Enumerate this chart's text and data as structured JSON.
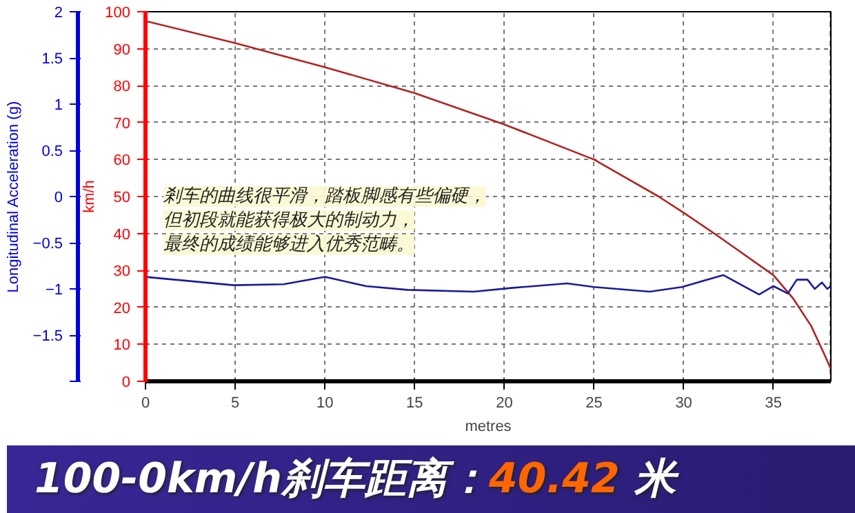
{
  "chart_data": {
    "type": "line",
    "title": "100-0km/h刹车距离：40.42 米",
    "xlabel": "metres",
    "ylabel": "Longitudinal Acceleration (g)",
    "y2label": "km/h",
    "xlim": [
      0,
      38.2
    ],
    "xticks": [
      0,
      5,
      10,
      15,
      20,
      25,
      30,
      35
    ],
    "ylim": [
      -2,
      2
    ],
    "yticks": [
      {
        "value": -2,
        "label": null
      },
      -1.5,
      -1,
      -0.5,
      0,
      0.5,
      1,
      1.5,
      2
    ],
    "y2lim": [
      0,
      100
    ],
    "y2ticks": [
      0,
      10,
      20,
      30,
      40,
      50,
      60,
      70,
      80,
      90,
      100
    ],
    "grid": true,
    "marker": "none",
    "line_style": "solid",
    "annotations": [
      "剎车的曲线很平滑，踏板脚感有些偏硬，",
      "但初段就能获得极大的制动力，",
      "最终的成绩能够进入优秀范畴。"
    ],
    "ref_lines": [
      {
        "axis": "x",
        "value": 38.2,
        "label": null,
        "color": "#000000",
        "line_style": "dashed"
      }
    ],
    "series": [
      {
        "color": "#b22222",
        "axis": "y2",
        "x": [
          0,
          5,
          10,
          15,
          20,
          25,
          28.6,
          30,
          32,
          35,
          36.1,
          37.1,
          37.8,
          38.2
        ],
        "values": [
          97.5,
          91.5,
          85,
          78,
          69.5,
          60,
          50,
          45.6,
          39,
          28.7,
          22.4,
          15,
          7.7,
          3.3
        ]
      },
      {
        "color": "#1a1a9c",
        "axis": "y",
        "x": [
          0,
          4.9,
          7.7,
          10,
          12.3,
          14.6,
          18.3,
          20.4,
          23.5,
          25,
          28.1,
          29.9,
          32.2,
          34.2,
          35,
          35.8,
          36.3,
          36.9,
          37.3,
          37.7,
          38,
          38.2
        ],
        "values": [
          -0.87,
          -0.96,
          -0.95,
          -0.87,
          -0.97,
          -1.01,
          -1.03,
          -0.99,
          -0.94,
          -0.98,
          -1.03,
          -0.98,
          -0.85,
          -1.06,
          -0.97,
          -1.05,
          -0.9,
          -0.9,
          -1,
          -0.93,
          -1,
          -0.97
        ]
      }
    ]
  }
}
